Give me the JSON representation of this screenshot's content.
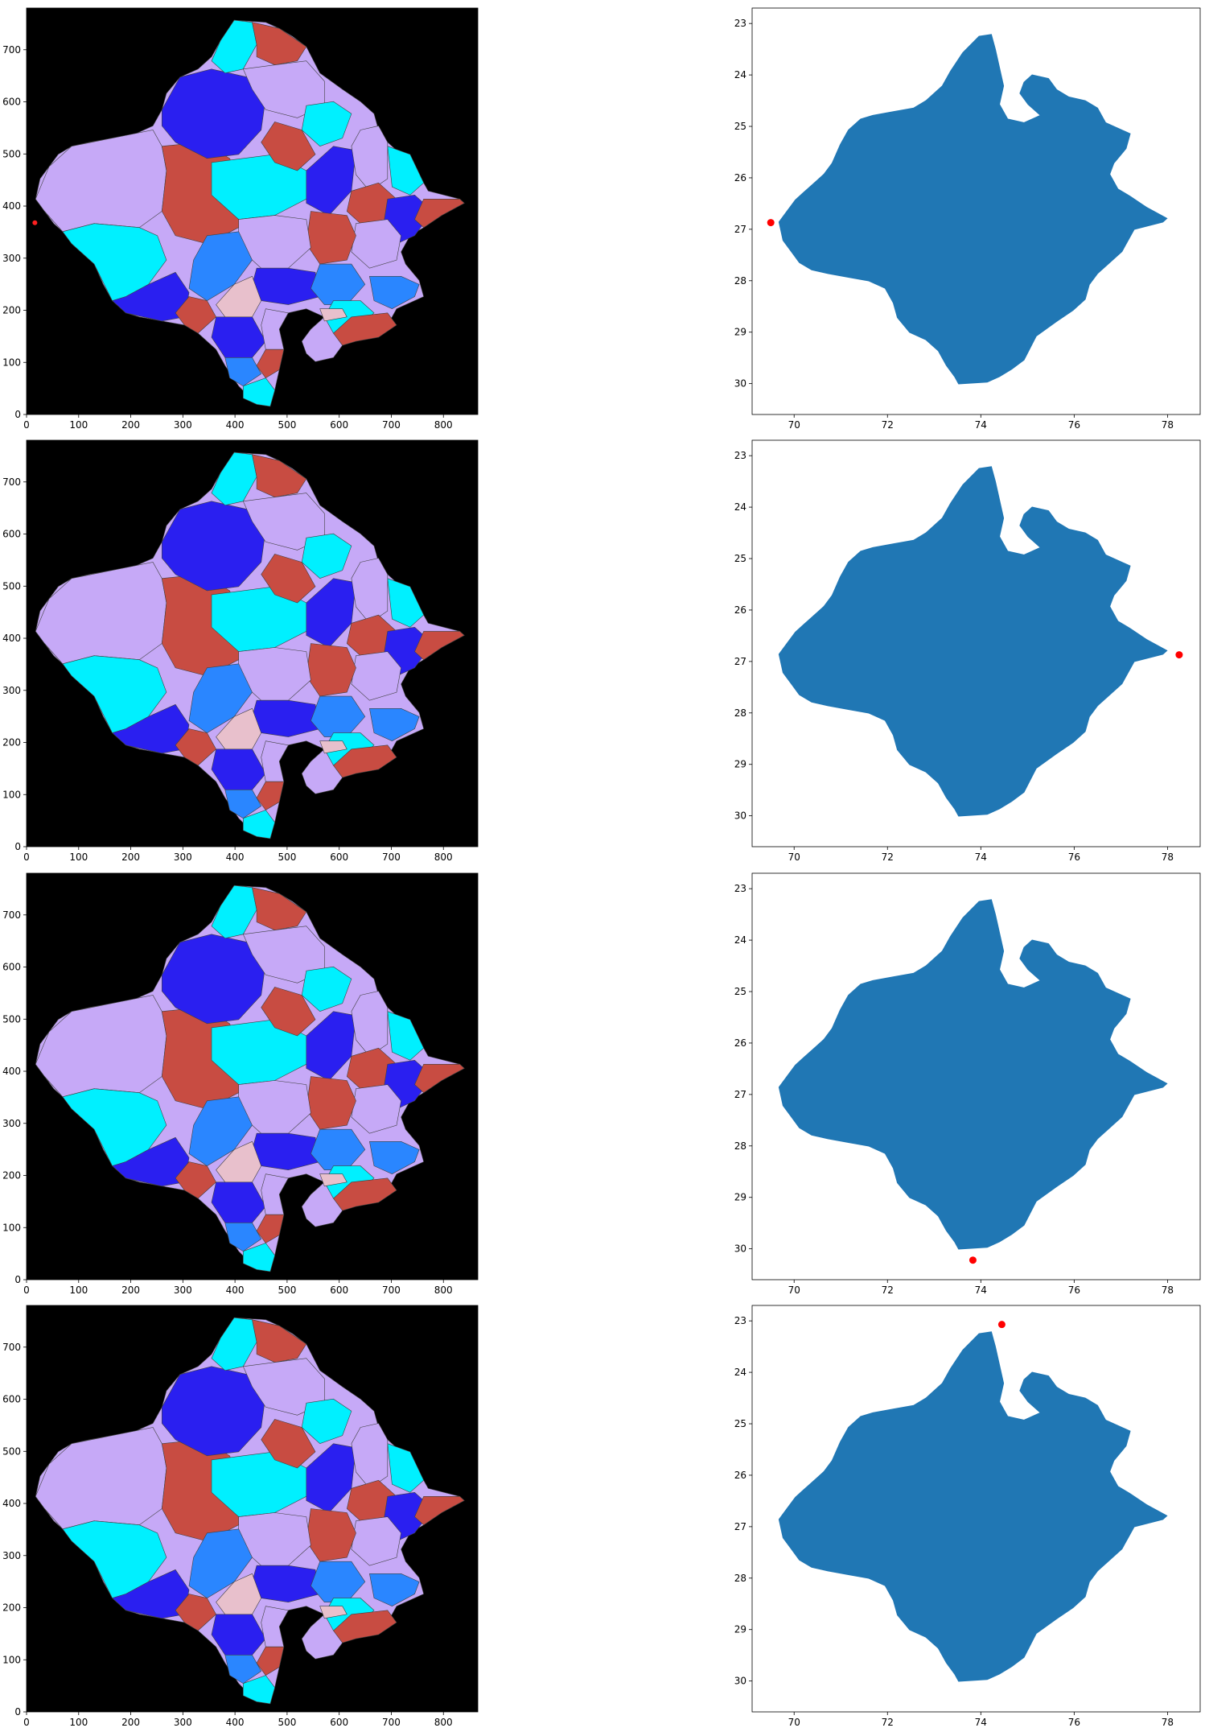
{
  "figure": {
    "background": "#ffffff",
    "image_panel_colors": {
      "background": "#000000",
      "lavender": "#c6a9f7",
      "cyan": "#00f0ff",
      "blue": "#2a1ff0",
      "red": "#c84c42",
      "azure": "#2a86ff",
      "pink": "#e8c0cc",
      "marker": "#ff2020",
      "border": "#404040"
    },
    "map_panel_colors": {
      "fill": "#2077b4",
      "marker": "#ff0000"
    }
  },
  "chart_data": [
    {
      "type": "image",
      "panel": "row1-image",
      "x_ticks": [
        0,
        100,
        200,
        300,
        400,
        500,
        600,
        700,
        800
      ],
      "y_ticks": [
        0,
        100,
        200,
        300,
        400,
        500,
        600,
        700
      ],
      "xlim": [
        0,
        866
      ],
      "ylim": [
        780,
        0
      ],
      "marker": {
        "x": 16,
        "y": 368
      }
    },
    {
      "type": "scatter",
      "panel": "row1-map",
      "x_ticks": [
        70,
        72,
        74,
        76,
        78
      ],
      "y_ticks": [
        23,
        24,
        25,
        26,
        27,
        28,
        29,
        30
      ],
      "xlim": [
        69.1,
        78.7
      ],
      "ylim": [
        22.7,
        30.6
      ],
      "point": {
        "x": 69.5,
        "y": 26.87
      }
    },
    {
      "type": "image",
      "panel": "row2-image",
      "x_ticks": [
        0,
        100,
        200,
        300,
        400,
        500,
        600,
        700,
        800
      ],
      "y_ticks": [
        0,
        100,
        200,
        300,
        400,
        500,
        600,
        700
      ],
      "xlim": [
        0,
        866
      ],
      "ylim": [
        780,
        0
      ],
      "marker": null
    },
    {
      "type": "scatter",
      "panel": "row2-map",
      "x_ticks": [
        70,
        72,
        74,
        76,
        78
      ],
      "y_ticks": [
        23,
        24,
        25,
        26,
        27,
        28,
        29,
        30
      ],
      "xlim": [
        69.1,
        78.7
      ],
      "ylim": [
        22.7,
        30.6
      ],
      "point": {
        "x": 78.25,
        "y": 26.87
      }
    },
    {
      "type": "image",
      "panel": "row3-image",
      "x_ticks": [
        0,
        100,
        200,
        300,
        400,
        500,
        600,
        700,
        800
      ],
      "y_ticks": [
        0,
        100,
        200,
        300,
        400,
        500,
        600,
        700
      ],
      "xlim": [
        0,
        866
      ],
      "ylim": [
        780,
        0
      ],
      "marker": null
    },
    {
      "type": "scatter",
      "panel": "row3-map",
      "x_ticks": [
        70,
        72,
        74,
        76,
        78
      ],
      "y_ticks": [
        23,
        24,
        25,
        26,
        27,
        28,
        29,
        30
      ],
      "xlim": [
        69.1,
        78.7
      ],
      "ylim": [
        22.7,
        30.6
      ],
      "point": {
        "x": 73.83,
        "y": 30.22
      }
    },
    {
      "type": "image",
      "panel": "row4-image",
      "x_ticks": [
        0,
        100,
        200,
        300,
        400,
        500,
        600,
        700,
        800
      ],
      "y_ticks": [
        0,
        100,
        200,
        300,
        400,
        500,
        600,
        700
      ],
      "xlim": [
        0,
        866
      ],
      "ylim": [
        780,
        0
      ],
      "marker": null
    },
    {
      "type": "scatter",
      "panel": "row4-map",
      "x_ticks": [
        70,
        72,
        74,
        76,
        78
      ],
      "y_ticks": [
        23,
        24,
        25,
        26,
        27,
        28,
        29,
        30
      ],
      "xlim": [
        69.1,
        78.7
      ],
      "ylim": [
        22.7,
        30.6
      ],
      "point": {
        "x": 74.45,
        "y": 23.07
      }
    }
  ]
}
